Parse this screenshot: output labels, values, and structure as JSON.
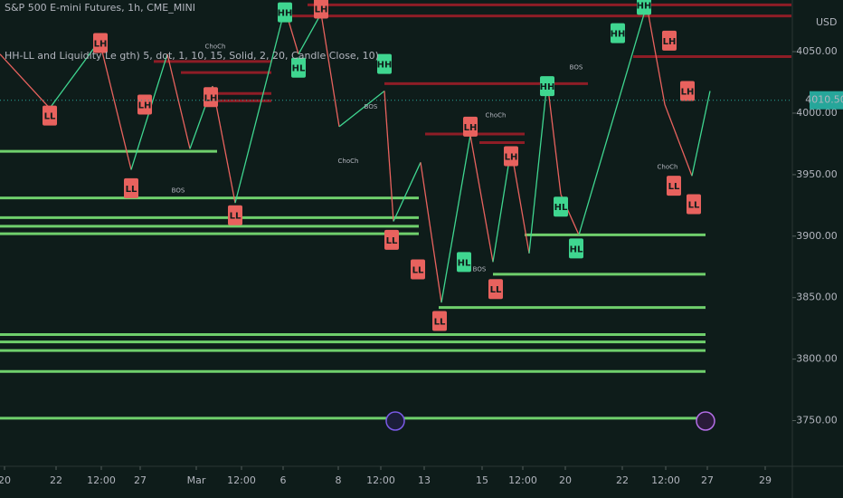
{
  "chart_data": {
    "type": "zigzag",
    "title": "S&P 500 E-mini Futures, 1h, CME_MINI",
    "indicator": "HH-LL and Liquidity Le gth) 5, dot, 1, 10, 15, Solid, 2, 20, Candle Close, 10)",
    "y_unit": "USD",
    "last_price": 4010.5,
    "last_price_label": "4010.50",
    "xlim": [
      0,
      87.5
    ],
    "ylim": [
      3718,
      4092
    ],
    "xticks": [
      {
        "value": 0.5,
        "label": "20"
      },
      {
        "value": 6.2,
        "label": "22"
      },
      {
        "value": 11.2,
        "label": "12:00"
      },
      {
        "value": 15.5,
        "label": "27"
      },
      {
        "value": 21.7,
        "label": "Mar"
      },
      {
        "value": 26.7,
        "label": "12:00"
      },
      {
        "value": 31.3,
        "label": "6"
      },
      {
        "value": 37.4,
        "label": "8"
      },
      {
        "value": 42.1,
        "label": "12:00"
      },
      {
        "value": 46.9,
        "label": "13"
      },
      {
        "value": 53.3,
        "label": "15"
      },
      {
        "value": 57.8,
        "label": "12:00"
      },
      {
        "value": 62.5,
        "label": "20"
      },
      {
        "value": 68.8,
        "label": "22"
      },
      {
        "value": 73.6,
        "label": "12:00"
      },
      {
        "value": 78.2,
        "label": "27"
      },
      {
        "value": 84.6,
        "label": "29"
      }
    ],
    "yticks": [
      {
        "value": 3750,
        "label": "3750.00"
      },
      {
        "value": 3800,
        "label": "3800.00"
      },
      {
        "value": 3850,
        "label": "3850.00"
      },
      {
        "value": 3900,
        "label": "3900.00"
      },
      {
        "value": 3950,
        "label": "3950.00"
      },
      {
        "value": 4000,
        "label": "4000.00"
      },
      {
        "value": 4050,
        "label": "4050.00"
      }
    ],
    "up_color": "#3fd690",
    "down_color": "#e8625e",
    "support_color": "#6fcf6c",
    "resistance_color": "#8e1d26",
    "series": [
      {
        "x": [
          0,
          5.5,
          11,
          14.5,
          18.5,
          21,
          23.5,
          26,
          31.5,
          33,
          35.5,
          37.5,
          42.5,
          43.5,
          46.5,
          48.8,
          52,
          54.5,
          56.5,
          58.5,
          60.5,
          62,
          64,
          71.5,
          73.5,
          76.5,
          78.5
        ],
        "values": [
          4048,
          4004,
          4059,
          3954,
          4048,
          3971,
          4022,
          3927,
          4085,
          4048,
          4081,
          3989,
          4018,
          3912,
          3960,
          3846,
          3982,
          3879,
          3971,
          3886,
          4026,
          3934,
          3901,
          4088,
          4007,
          3949,
          4018
        ]
      }
    ],
    "resistance_levels": [
      {
        "price": 4088,
        "start": 34,
        "end": 87.5
      },
      {
        "price": 4079,
        "start": 31.5,
        "end": 87.5
      },
      {
        "price": 4046,
        "start": 70,
        "end": 87.5
      },
      {
        "price": 4042,
        "start": 17,
        "end": 30
      },
      {
        "price": 4033,
        "start": 20,
        "end": 30
      },
      {
        "price": 4024,
        "start": 42.5,
        "end": 65
      },
      {
        "price": 4016,
        "start": 22.5,
        "end": 30
      },
      {
        "price": 4010,
        "start": 24,
        "end": 30
      },
      {
        "price": 3983,
        "start": 47,
        "end": 58
      },
      {
        "price": 3976,
        "start": 53,
        "end": 58
      }
    ],
    "support_levels": [
      {
        "price": 3969,
        "start": 0,
        "end": 24
      },
      {
        "price": 3931,
        "start": 0,
        "end": 46.3
      },
      {
        "price": 3915,
        "start": 0,
        "end": 46.3
      },
      {
        "price": 3908,
        "start": 0,
        "end": 46.3
      },
      {
        "price": 3902,
        "start": 0,
        "end": 46.3
      },
      {
        "price": 3901,
        "start": 58,
        "end": 78
      },
      {
        "price": 3869,
        "start": 54.5,
        "end": 78
      },
      {
        "price": 3842,
        "start": 48.5,
        "end": 78
      },
      {
        "price": 3820,
        "start": 0,
        "end": 78
      },
      {
        "price": 3814,
        "start": 0,
        "end": 78
      },
      {
        "price": 3807,
        "start": 0,
        "end": 78
      },
      {
        "price": 3790,
        "start": 0,
        "end": 78
      },
      {
        "price": 3752,
        "start": 0,
        "end": 78
      }
    ],
    "pivots": [
      {
        "text": "LL",
        "x": 5.5,
        "y": 3998
      },
      {
        "text": "LH",
        "x": 11.1,
        "y": 4057
      },
      {
        "text": "LL",
        "x": 14.5,
        "y": 3939
      },
      {
        "text": "LH",
        "x": 16,
        "y": 4007
      },
      {
        "text": "LH",
        "x": 23.3,
        "y": 4013
      },
      {
        "text": "LL",
        "x": 26,
        "y": 3917
      },
      {
        "text": "HH",
        "x": 31.5,
        "y": 4082
      },
      {
        "text": "HL",
        "x": 33,
        "y": 4037
      },
      {
        "text": "LH",
        "x": 35.5,
        "y": 4085
      },
      {
        "text": "HH",
        "x": 42.5,
        "y": 4040
      },
      {
        "text": "LL",
        "x": 43.3,
        "y": 3897
      },
      {
        "text": "LL",
        "x": 46.2,
        "y": 3873
      },
      {
        "text": "LL",
        "x": 48.6,
        "y": 3831
      },
      {
        "text": "HL",
        "x": 51.3,
        "y": 3879
      },
      {
        "text": "LH",
        "x": 52,
        "y": 3989
      },
      {
        "text": "LL",
        "x": 54.8,
        "y": 3857
      },
      {
        "text": "LH",
        "x": 56.5,
        "y": 3965
      },
      {
        "text": "HH",
        "x": 60.5,
        "y": 4022
      },
      {
        "text": "HL",
        "x": 62,
        "y": 3924
      },
      {
        "text": "HL",
        "x": 63.7,
        "y": 3890
      },
      {
        "text": "HH",
        "x": 68.3,
        "y": 4065
      },
      {
        "text": "HH",
        "x": 71.2,
        "y": 4088
      },
      {
        "text": "LH",
        "x": 74,
        "y": 4059
      },
      {
        "text": "LH",
        "x": 76,
        "y": 4018
      },
      {
        "text": "LL",
        "x": 74.5,
        "y": 3941
      },
      {
        "text": "LL",
        "x": 76.7,
        "y": 3926
      }
    ],
    "annotations": [
      {
        "text": "ChoCh",
        "x": 23.8,
        "y": 4054
      },
      {
        "text": "BOS",
        "x": 19.7,
        "y": 3937
      },
      {
        "text": "BOS",
        "x": 41,
        "y": 4005
      },
      {
        "text": "ChoCh",
        "x": 38.5,
        "y": 3961
      },
      {
        "text": "ChoCh",
        "x": 54.8,
        "y": 3998
      },
      {
        "text": "BOS",
        "x": 53,
        "y": 3873
      },
      {
        "text": "BOS",
        "x": 63.7,
        "y": 4037
      },
      {
        "text": "ChoCh",
        "x": 73.8,
        "y": 3956
      }
    ]
  }
}
